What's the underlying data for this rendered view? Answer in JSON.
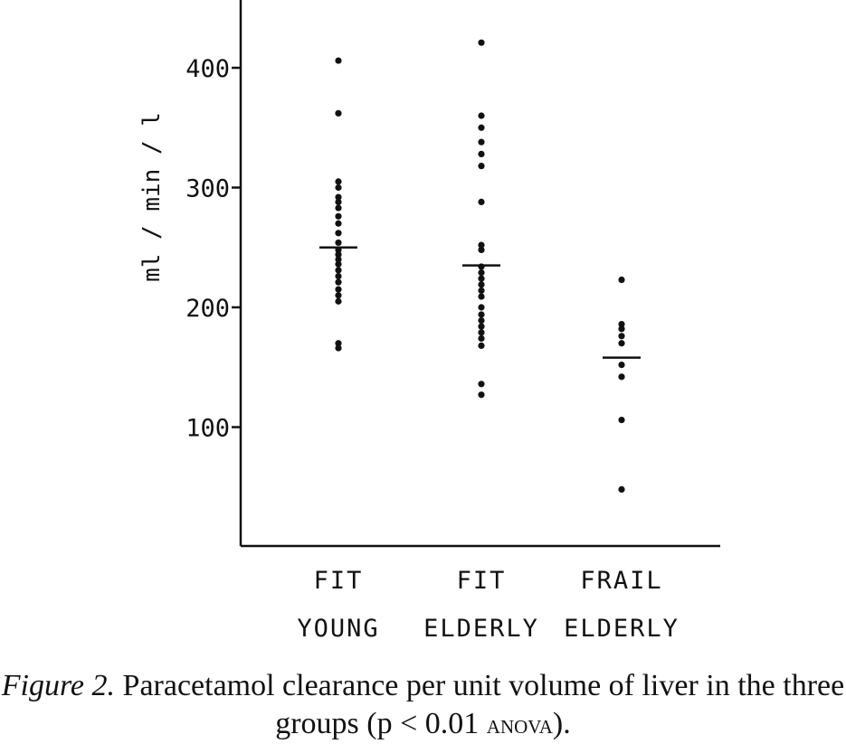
{
  "chart_data": {
    "type": "scatter",
    "ylabel": "ml / min / l",
    "xlabel": "",
    "ylim": [
      0,
      450
    ],
    "yticks": [
      100,
      200,
      300,
      400
    ],
    "grid": false,
    "categories": [
      {
        "line1": "FIT",
        "line2": "YOUNG"
      },
      {
        "line1": "FIT",
        "line2": "ELDERLY"
      },
      {
        "line1": "FRAIL",
        "line2": "ELDERLY"
      }
    ],
    "series": [
      {
        "category": 0,
        "values": [
          406,
          362,
          305,
          300,
          292,
          288,
          283,
          276,
          270,
          262,
          254,
          248,
          244,
          240,
          236,
          231,
          226,
          221,
          215,
          210,
          205,
          170,
          166
        ],
        "mean": 250
      },
      {
        "category": 1,
        "values": [
          421,
          360,
          350,
          338,
          328,
          318,
          288,
          252,
          248,
          234,
          229,
          224,
          219,
          214,
          209,
          200,
          194,
          189,
          184,
          179,
          174,
          168,
          136,
          127
        ],
        "mean": 235
      },
      {
        "category": 2,
        "values": [
          223,
          186,
          182,
          176,
          170,
          152,
          142,
          106,
          48
        ],
        "mean": 158
      }
    ]
  },
  "caption": {
    "figure_label": "Figure 2.",
    "text_before": " Paracetamol clearance per unit volume of liver in the three groups (p < 0.01 ",
    "test_name": "anova",
    "text_after": ")."
  }
}
